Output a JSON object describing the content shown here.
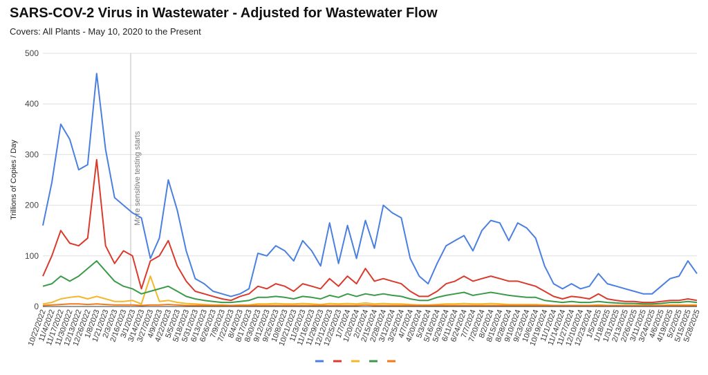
{
  "title": "SARS-COV-2 Virus in Wastewater - Adjusted for Wastewater Flow",
  "subtitle": "Covers: All Plants - May 10, 2020 to the Present",
  "chart_data": {
    "type": "line",
    "ylabel": "Trillions of Copies / Day",
    "xlabel": "",
    "ylim": [
      0,
      500
    ],
    "yticks": [
      0,
      100,
      200,
      300,
      400,
      500
    ],
    "grid": true,
    "legend": "bottom",
    "annotation": "More sensitive testing starts",
    "annotation_x": "3/10/2023",
    "x_ticks": [
      "10/22/2022",
      "11/4/2022",
      "11/17/2022",
      "11/30/2022",
      "12/13/2022",
      "12/26/2022",
      "1/8/2023",
      "1/21/2023",
      "2/3/2023",
      "2/16/2023",
      "3/1/2023",
      "3/14/2023",
      "3/27/2023",
      "4/9/2023",
      "4/22/2023",
      "5/5/2023",
      "5/18/2023",
      "5/31/2023",
      "6/13/2023",
      "6/26/2023",
      "7/9/2023",
      "7/22/2023",
      "8/4/2023",
      "8/17/2023",
      "8/30/2023",
      "9/12/2023",
      "9/25/2023",
      "10/8/2023",
      "10/21/2023",
      "11/3/2023",
      "11/16/2023",
      "11/29/2023",
      "12/12/2023",
      "12/25/2023",
      "1/7/2024",
      "1/20/2024",
      "2/2/2024",
      "2/15/2024",
      "2/28/2024",
      "3/12/2024",
      "3/25/2024",
      "4/7/2024",
      "4/20/2024",
      "5/3/2024",
      "5/16/2024",
      "5/29/2024",
      "6/11/2024",
      "6/24/2024",
      "7/7/2024",
      "7/20/2024",
      "8/2/2024",
      "8/15/2024",
      "8/28/2024",
      "9/10/2024",
      "9/23/2024",
      "10/6/2024",
      "10/19/2024",
      "11/1/2024",
      "11/14/2024",
      "11/27/2024",
      "12/10/2024",
      "12/23/2024",
      "1/5/2025",
      "1/18/2025",
      "1/31/2025",
      "2/13/2025",
      "2/26/2025",
      "3/11/2025",
      "3/24/2025",
      "4/6/2025",
      "4/19/2025",
      "5/2/2025",
      "5/15/2025",
      "5/28/2025"
    ],
    "series": [
      {
        "color": "#4a7fe0",
        "values": [
          160,
          245,
          360,
          330,
          270,
          280,
          460,
          310,
          215,
          200,
          185,
          175,
          95,
          135,
          250,
          190,
          110,
          55,
          45,
          30,
          25,
          20,
          25,
          35,
          105,
          100,
          120,
          110,
          90,
          130,
          110,
          80,
          165,
          85,
          160,
          95,
          170,
          115,
          200,
          185,
          175,
          95,
          60,
          45,
          85,
          120,
          130,
          140,
          110,
          150,
          170,
          165,
          130,
          165,
          155,
          135,
          80,
          45,
          35,
          45,
          35,
          40,
          65,
          45,
          40,
          35,
          30,
          25,
          25,
          40,
          55,
          60,
          90,
          65
        ]
      },
      {
        "color": "#d93a2b",
        "values": [
          60,
          100,
          150,
          125,
          120,
          135,
          290,
          120,
          85,
          110,
          100,
          35,
          90,
          100,
          130,
          80,
          50,
          30,
          25,
          20,
          15,
          12,
          20,
          25,
          40,
          35,
          45,
          40,
          30,
          45,
          40,
          35,
          55,
          40,
          60,
          45,
          75,
          50,
          55,
          50,
          45,
          30,
          20,
          20,
          30,
          45,
          50,
          60,
          50,
          55,
          60,
          55,
          50,
          50,
          45,
          40,
          30,
          20,
          15,
          20,
          18,
          15,
          25,
          15,
          12,
          10,
          10,
          8,
          8,
          10,
          12,
          12,
          15,
          12
        ]
      },
      {
        "color": "#f2b72a",
        "values": [
          5,
          8,
          15,
          18,
          20,
          15,
          20,
          15,
          10,
          10,
          12,
          5,
          60,
          10,
          12,
          8,
          6,
          5,
          4,
          3,
          3,
          2,
          3,
          3,
          5,
          5,
          6,
          5,
          5,
          6,
          5,
          4,
          6,
          5,
          6,
          5,
          7,
          5,
          6,
          5,
          5,
          4,
          3,
          3,
          4,
          5,
          5,
          6,
          5,
          5,
          6,
          5,
          4,
          4,
          4,
          4,
          3,
          2,
          2,
          2,
          2,
          2,
          3,
          2,
          2,
          2,
          2,
          2,
          2,
          2,
          3,
          3,
          3,
          3
        ]
      },
      {
        "color": "#3a9a48",
        "values": [
          40,
          45,
          60,
          50,
          60,
          75,
          90,
          70,
          50,
          40,
          35,
          25,
          30,
          35,
          40,
          30,
          20,
          15,
          12,
          10,
          8,
          8,
          10,
          12,
          18,
          18,
          20,
          18,
          15,
          20,
          18,
          15,
          22,
          18,
          25,
          20,
          25,
          22,
          25,
          22,
          20,
          15,
          12,
          12,
          18,
          22,
          25,
          28,
          22,
          25,
          28,
          25,
          22,
          20,
          18,
          18,
          12,
          10,
          8,
          10,
          8,
          8,
          10,
          8,
          7,
          6,
          6,
          5,
          5,
          6,
          8,
          8,
          10,
          8
        ]
      },
      {
        "color": "#f07a1a",
        "values": [
          2,
          3,
          4,
          5,
          5,
          4,
          5,
          4,
          3,
          3,
          3,
          2,
          3,
          3,
          4,
          3,
          2,
          2,
          2,
          2,
          2,
          2,
          2,
          2,
          2,
          2,
          2,
          2,
          2,
          2,
          2,
          2,
          2,
          2,
          2,
          2,
          3,
          2,
          2,
          2,
          2,
          2,
          2,
          2,
          2,
          2,
          2,
          2,
          2,
          2,
          2,
          2,
          2,
          2,
          2,
          2,
          2,
          2,
          2,
          2,
          2,
          2,
          2,
          2,
          2,
          2,
          2,
          2,
          2,
          2,
          2,
          2,
          2,
          2
        ]
      }
    ]
  }
}
